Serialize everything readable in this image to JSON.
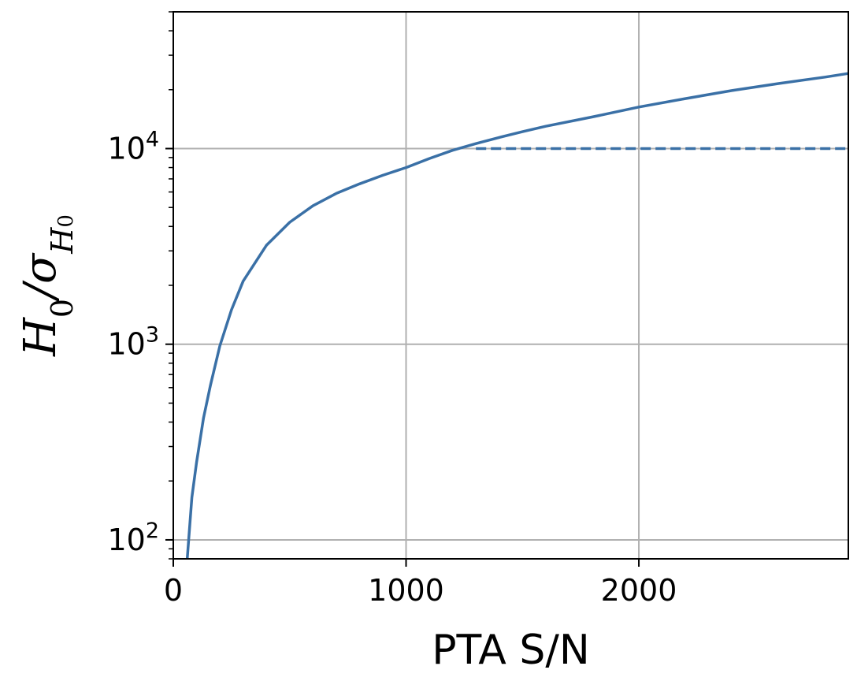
{
  "chart_data": {
    "type": "line",
    "xlabel": "PTA S/N",
    "ylabel": {
      "main": "H",
      "main_sub": "0",
      "sep": "/σ",
      "sub": "H",
      "sub_sub": "0"
    },
    "xlim": [
      0,
      2900
    ],
    "ylim": [
      80,
      50000
    ],
    "yscale": "log",
    "grid": true,
    "x_ticks": [
      {
        "value": 0,
        "label": "0"
      },
      {
        "value": 1000,
        "label": "1000"
      },
      {
        "value": 2000,
        "label": "2000"
      }
    ],
    "y_ticks": [
      {
        "value": 100,
        "base": "10",
        "exp": "2"
      },
      {
        "value": 1000,
        "base": "10",
        "exp": "3"
      },
      {
        "value": 10000,
        "base": "10",
        "exp": "4"
      }
    ],
    "series": [
      {
        "style": "solid",
        "color": "#3a70a6",
        "x": [
          60,
          80,
          100,
          130,
          160,
          200,
          250,
          300,
          400,
          500,
          600,
          700,
          800,
          900,
          1000,
          1100,
          1200,
          1300,
          1400,
          1500,
          1600,
          1800,
          2000,
          2200,
          2400,
          2600,
          2800,
          2900
        ],
        "y": [
          80,
          165,
          250,
          420,
          620,
          980,
          1500,
          2100,
          3200,
          4200,
          5100,
          5900,
          6600,
          7300,
          8000,
          8900,
          9800,
          10600,
          11400,
          12200,
          13000,
          14500,
          16300,
          18000,
          19800,
          21500,
          23200,
          24200
        ]
      },
      {
        "style": "dashed",
        "color": "#3a70a6",
        "x": [
          1300,
          2900
        ],
        "y": [
          10000,
          10000
        ]
      }
    ]
  }
}
